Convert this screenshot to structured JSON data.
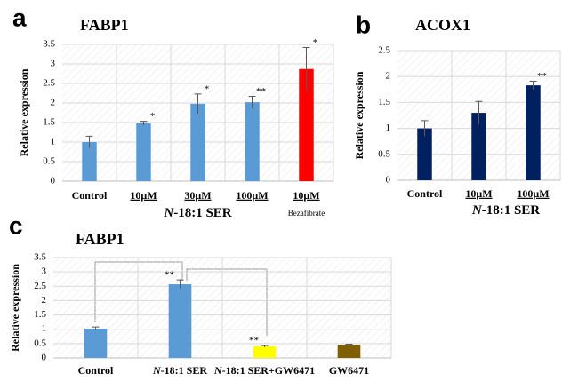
{
  "chart_data": [
    {
      "type": "bar",
      "panel": "a",
      "title": "FABP1",
      "ylabel": "Relative expression",
      "categories": [
        "Control",
        "10μM",
        "30μM",
        "100μM",
        "10μM"
      ],
      "values": [
        1.0,
        1.48,
        1.98,
        2.02,
        2.87
      ],
      "errors": [
        0.15,
        0.05,
        0.25,
        0.15,
        0.55
      ],
      "significance": [
        null,
        "*",
        "*",
        "**",
        "*"
      ],
      "colors": [
        "#5b9bd5",
        "#5b9bd5",
        "#5b9bd5",
        "#5b9bd5",
        "#ff0000"
      ],
      "group_label": "N-18:1 SER",
      "note": "Bezafibrate",
      "ylim": [
        0,
        3.5
      ],
      "yticks": [
        0,
        0.5,
        1,
        1.5,
        2,
        2.5,
        3,
        3.5
      ],
      "grid": true
    },
    {
      "type": "bar",
      "panel": "b",
      "title": "ACOX1",
      "ylabel": "Relative expression",
      "categories": [
        "Control",
        "10μM",
        "100μM"
      ],
      "values": [
        1.0,
        1.3,
        1.83
      ],
      "errors": [
        0.15,
        0.22,
        0.08
      ],
      "significance": [
        null,
        null,
        "**"
      ],
      "colors": [
        "#002060",
        "#002060",
        "#002060"
      ],
      "group_label": "N-18:1 SER",
      "ylim": [
        0,
        2.5
      ],
      "yticks": [
        0,
        0.5,
        1,
        1.5,
        2,
        2.5
      ],
      "grid": true
    },
    {
      "type": "bar",
      "panel": "c",
      "title": "FABP1",
      "ylabel": "Relative expression",
      "categories": [
        "Control",
        "N-18:1 SER",
        "N-18:1 SER+GW6471",
        "GW6471"
      ],
      "values": [
        1.02,
        2.57,
        0.4,
        0.45
      ],
      "errors": [
        0.06,
        0.15,
        0.03,
        0.03
      ],
      "significance": [
        null,
        "**",
        "**",
        null
      ],
      "colors": [
        "#5b9bd5",
        "#5b9bd5",
        "#ffff00",
        "#7f6000"
      ],
      "ylim": [
        0,
        3.5
      ],
      "yticks": [
        0,
        0.5,
        1,
        1.5,
        2,
        2.5,
        3,
        3.5
      ],
      "grid": true
    }
  ]
}
